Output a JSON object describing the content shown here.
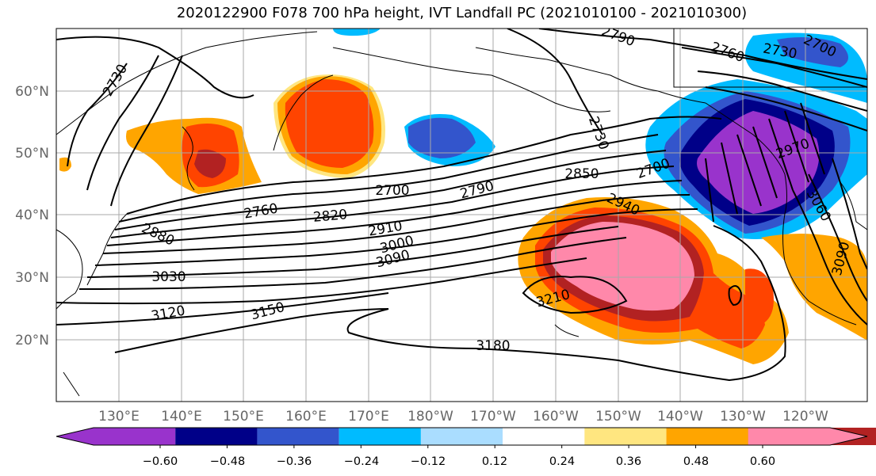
{
  "title": "2020122900 F078 700 hPa height, IVT Landfall PC (2021010100 - 2021010300)",
  "lat_labels": [
    "60°N",
    "50°N",
    "40°N",
    "30°N",
    "20°N"
  ],
  "lon_labels": [
    "130°E",
    "140°E",
    "150°E",
    "160°E",
    "170°E",
    "180°W",
    "170°W",
    "160°W",
    "150°W",
    "140°W",
    "130°W",
    "120°W"
  ],
  "contour_labels": [
    "2730",
    "2790",
    "2760",
    "2730",
    "2700",
    "2730",
    "2700",
    "2850",
    "2970",
    "2940",
    "3060",
    "2700",
    "2790",
    "2760",
    "2820",
    "2910",
    "2880",
    "3000",
    "3090",
    "3030",
    "3120",
    "3150",
    "3210",
    "3180",
    "3090"
  ],
  "colorbar": {
    "colors": [
      "#9933cc",
      "#000088",
      "#3355cc",
      "#00bbff",
      "#aaddff",
      "#ffffff",
      "#ffe680",
      "#ffa500",
      "#ff4400",
      "#b22222",
      "#ff88aa"
    ],
    "labels": [
      "−0.60",
      "−0.48",
      "−0.36",
      "−0.24",
      "−0.12",
      "0.12",
      "0.24",
      "0.36",
      "0.48",
      "0.60"
    ]
  }
}
